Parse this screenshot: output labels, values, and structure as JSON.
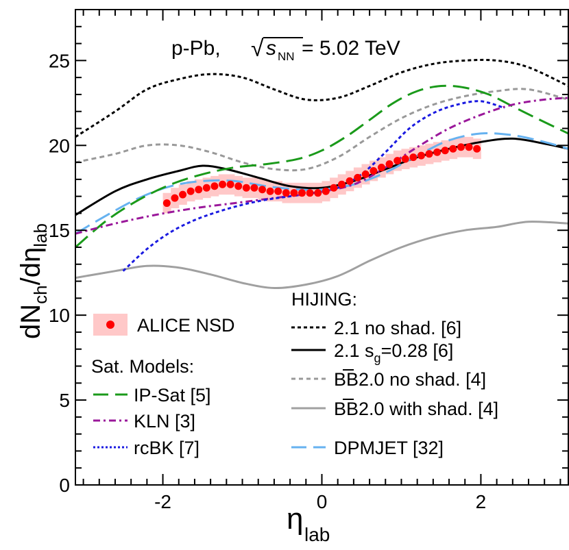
{
  "chart_data": {
    "type": "line",
    "title": "p-Pb, √s_NN = 5.02 TeV",
    "title_parts": {
      "prefix": "p-Pb, ",
      "sqrt": "√",
      "var": "s",
      "sub": "NN",
      "suffix": " = 5.02 TeV"
    },
    "xlabel": {
      "main": "η",
      "sub": "lab"
    },
    "ylabel": {
      "main": "dN",
      "sub1": "ch",
      "mid": "/dη",
      "sub2": "lab"
    },
    "xlim": [
      -3.1,
      3.1
    ],
    "ylim": [
      0,
      28
    ],
    "xticks": [
      -2,
      0,
      2
    ],
    "xtick_labels": [
      "-2",
      "0",
      "2"
    ],
    "yticks": [
      0,
      5,
      10,
      15,
      20,
      25
    ],
    "ytick_labels": [
      "0",
      "5",
      "10",
      "15",
      "20",
      "25"
    ],
    "data_points": {
      "name": "ALICE NSD",
      "color": "#ff0000",
      "band_color": "#ffc8c8",
      "x": [
        -1.95,
        -1.85,
        -1.75,
        -1.65,
        -1.55,
        -1.45,
        -1.35,
        -1.25,
        -1.15,
        -1.05,
        -0.95,
        -0.85,
        -0.75,
        -0.65,
        -0.55,
        -0.45,
        -0.35,
        -0.25,
        -0.15,
        -0.05,
        0.05,
        0.15,
        0.25,
        0.35,
        0.45,
        0.55,
        0.65,
        0.75,
        0.85,
        0.95,
        1.05,
        1.15,
        1.25,
        1.35,
        1.45,
        1.55,
        1.65,
        1.75,
        1.85,
        1.95
      ],
      "y": [
        16.6,
        16.9,
        17.1,
        17.3,
        17.4,
        17.5,
        17.6,
        17.7,
        17.7,
        17.6,
        17.5,
        17.5,
        17.4,
        17.3,
        17.3,
        17.2,
        17.2,
        17.2,
        17.2,
        17.2,
        17.3,
        17.5,
        17.7,
        17.9,
        18.1,
        18.3,
        18.5,
        18.7,
        18.9,
        19.1,
        19.2,
        19.3,
        19.4,
        19.5,
        19.6,
        19.7,
        19.8,
        19.9,
        19.9,
        19.8
      ],
      "err": [
        0.6,
        0.6,
        0.6,
        0.6,
        0.6,
        0.6,
        0.6,
        0.6,
        0.6,
        0.6,
        0.6,
        0.6,
        0.6,
        0.6,
        0.6,
        0.6,
        0.6,
        0.6,
        0.6,
        0.6,
        0.6,
        0.6,
        0.6,
        0.6,
        0.6,
        0.6,
        0.6,
        0.6,
        0.6,
        0.6,
        0.6,
        0.6,
        0.6,
        0.6,
        0.6,
        0.6,
        0.6,
        0.6,
        0.6,
        0.6
      ]
    },
    "series": [
      {
        "name": "2.1 no shad. [6]",
        "group": "hijing",
        "color": "#000000",
        "style": "dot",
        "x": [
          -3.1,
          -2.6,
          -2.2,
          -1.8,
          -1.4,
          -1.0,
          -0.6,
          -0.2,
          0.2,
          0.6,
          1.0,
          1.4,
          1.8,
          2.2,
          2.6,
          3.1
        ],
        "y": [
          20.5,
          22.0,
          23.3,
          23.9,
          24.2,
          24.0,
          23.3,
          22.7,
          22.8,
          23.5,
          24.3,
          24.8,
          25.0,
          25.0,
          24.6,
          23.5
        ]
      },
      {
        "name": "2.1 s_g=0.28 [6]",
        "group": "hijing",
        "color": "#000000",
        "style": "solid",
        "x": [
          -3.1,
          -2.6,
          -2.2,
          -1.8,
          -1.5,
          -1.2,
          -0.8,
          -0.4,
          0.0,
          0.4,
          0.8,
          1.2,
          1.6,
          2.0,
          2.4,
          2.8,
          3.1
        ],
        "y": [
          15.9,
          17.3,
          18.0,
          18.5,
          18.8,
          18.6,
          18.1,
          17.6,
          17.5,
          17.9,
          18.6,
          19.3,
          19.8,
          20.2,
          20.4,
          20.1,
          19.8
        ]
      },
      {
        "name": "BB2.0 no shad. [4]",
        "group": "hijing",
        "color": "#999999",
        "style": "shortdash",
        "x": [
          -3.1,
          -2.6,
          -2.2,
          -1.8,
          -1.4,
          -1.0,
          -0.6,
          -0.2,
          0.2,
          0.6,
          1.0,
          1.4,
          1.8,
          2.2,
          2.6,
          3.1
        ],
        "y": [
          19.0,
          19.5,
          20.0,
          20.0,
          19.6,
          19.0,
          18.6,
          18.6,
          19.3,
          20.5,
          21.6,
          22.4,
          22.9,
          23.2,
          23.3,
          22.7
        ]
      },
      {
        "name": "BB2.0 with shad. [4]",
        "group": "hijing",
        "color": "#a0a0a0",
        "style": "solid",
        "x": [
          -3.1,
          -2.6,
          -2.2,
          -1.8,
          -1.4,
          -1.0,
          -0.6,
          -0.2,
          0.2,
          0.6,
          1.0,
          1.4,
          1.8,
          2.2,
          2.6,
          3.1
        ],
        "y": [
          12.2,
          12.6,
          12.9,
          12.8,
          12.4,
          11.9,
          11.6,
          11.8,
          12.3,
          13.2,
          14.0,
          14.6,
          15.0,
          15.2,
          15.5,
          15.4
        ]
      },
      {
        "name": "DPMJET [32]",
        "group": "hijing",
        "color": "#66b2f0",
        "style": "longdash",
        "x": [
          -3.1,
          -2.7,
          -2.3,
          -1.9,
          -1.5,
          -1.1,
          -0.7,
          -0.3,
          0.0,
          0.4,
          0.8,
          1.2,
          1.6,
          2.0,
          2.4,
          2.8,
          3.1
        ],
        "y": [
          14.8,
          15.9,
          16.9,
          17.6,
          17.9,
          17.9,
          17.6,
          17.4,
          17.4,
          17.7,
          18.4,
          19.4,
          20.3,
          20.7,
          20.6,
          20.2,
          19.8
        ]
      },
      {
        "name": "IP-Sat [5]",
        "group": "sat",
        "color": "#1a9a1a",
        "style": "longdash",
        "x": [
          -3.1,
          -2.7,
          -2.3,
          -1.9,
          -1.5,
          -1.1,
          -0.7,
          -0.3,
          0.0,
          0.3,
          0.6,
          0.9,
          1.2,
          1.5,
          1.8,
          2.1,
          2.4,
          2.7,
          3.1
        ],
        "y": [
          14.0,
          15.6,
          16.8,
          17.7,
          18.3,
          18.7,
          18.9,
          19.2,
          19.7,
          20.5,
          21.5,
          22.5,
          23.2,
          23.5,
          23.4,
          23.0,
          22.3,
          21.6,
          20.7
        ]
      },
      {
        "name": "KLN [3]",
        "group": "sat",
        "color": "#9a179a",
        "style": "dashdot",
        "x": [
          -3.1,
          -2.6,
          -2.1,
          -1.6,
          -1.1,
          -0.6,
          -0.1,
          0.4,
          0.8,
          1.2,
          1.6,
          2.0,
          2.4,
          2.8,
          3.1
        ],
        "y": [
          14.8,
          15.4,
          15.9,
          16.3,
          16.6,
          16.9,
          17.2,
          17.7,
          18.7,
          19.9,
          21.0,
          21.8,
          22.4,
          22.7,
          22.8
        ]
      },
      {
        "name": "rcBK [7]",
        "group": "sat",
        "color": "#1a1ae0",
        "style": "dot",
        "x": [
          -2.5,
          -2.2,
          -1.9,
          -1.6,
          -1.3,
          -1.0,
          -0.7,
          -0.4,
          -0.1,
          0.2,
          0.5,
          0.8,
          1.1,
          1.4,
          1.7,
          2.0,
          2.3
        ],
        "y": [
          12.6,
          13.9,
          14.9,
          15.6,
          16.1,
          16.5,
          16.8,
          17.0,
          17.2,
          17.5,
          18.3,
          19.6,
          21.0,
          21.9,
          22.4,
          22.6,
          22.2
        ]
      }
    ]
  },
  "legend": {
    "alice_label": "ALICE NSD",
    "sat_header": "Sat. Models:",
    "ipsat_label": "IP-Sat [5]",
    "kln_label": "KLN [3]",
    "rcbk_label": "rcBK [7]",
    "hijing_header": "HIJING:",
    "nosh_label": "2.1 no shad. [6]",
    "sg_label_pre": "2.1 s",
    "sg_label_sub": "g",
    "sg_label_post": "=0.28 [6]",
    "bb_nosh_bb": "BB",
    "bb_nosh_rest": "2.0 no shad. [4]",
    "bb_sh_bb": "BB",
    "bb_sh_rest": "2.0 with shad. [4]",
    "dpmjet_label": "DPMJET [32]"
  }
}
